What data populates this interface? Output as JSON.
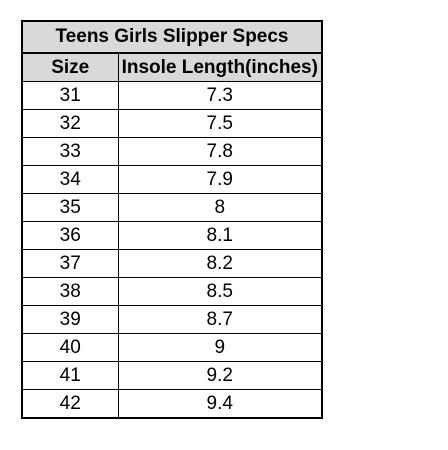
{
  "table": {
    "title": "Teens Girls Slipper Specs",
    "columns": [
      "Size",
      "Insole Length(inches)"
    ],
    "rows": [
      [
        "31",
        "7.3"
      ],
      [
        "32",
        "7.5"
      ],
      [
        "33",
        "7.8"
      ],
      [
        "34",
        "7.9"
      ],
      [
        "35",
        "8"
      ],
      [
        "36",
        "8.1"
      ],
      [
        "37",
        "8.2"
      ],
      [
        "38",
        "8.5"
      ],
      [
        "39",
        "8.7"
      ],
      [
        "40",
        "9"
      ],
      [
        "41",
        "9.2"
      ],
      [
        "42",
        "9.4"
      ]
    ]
  }
}
